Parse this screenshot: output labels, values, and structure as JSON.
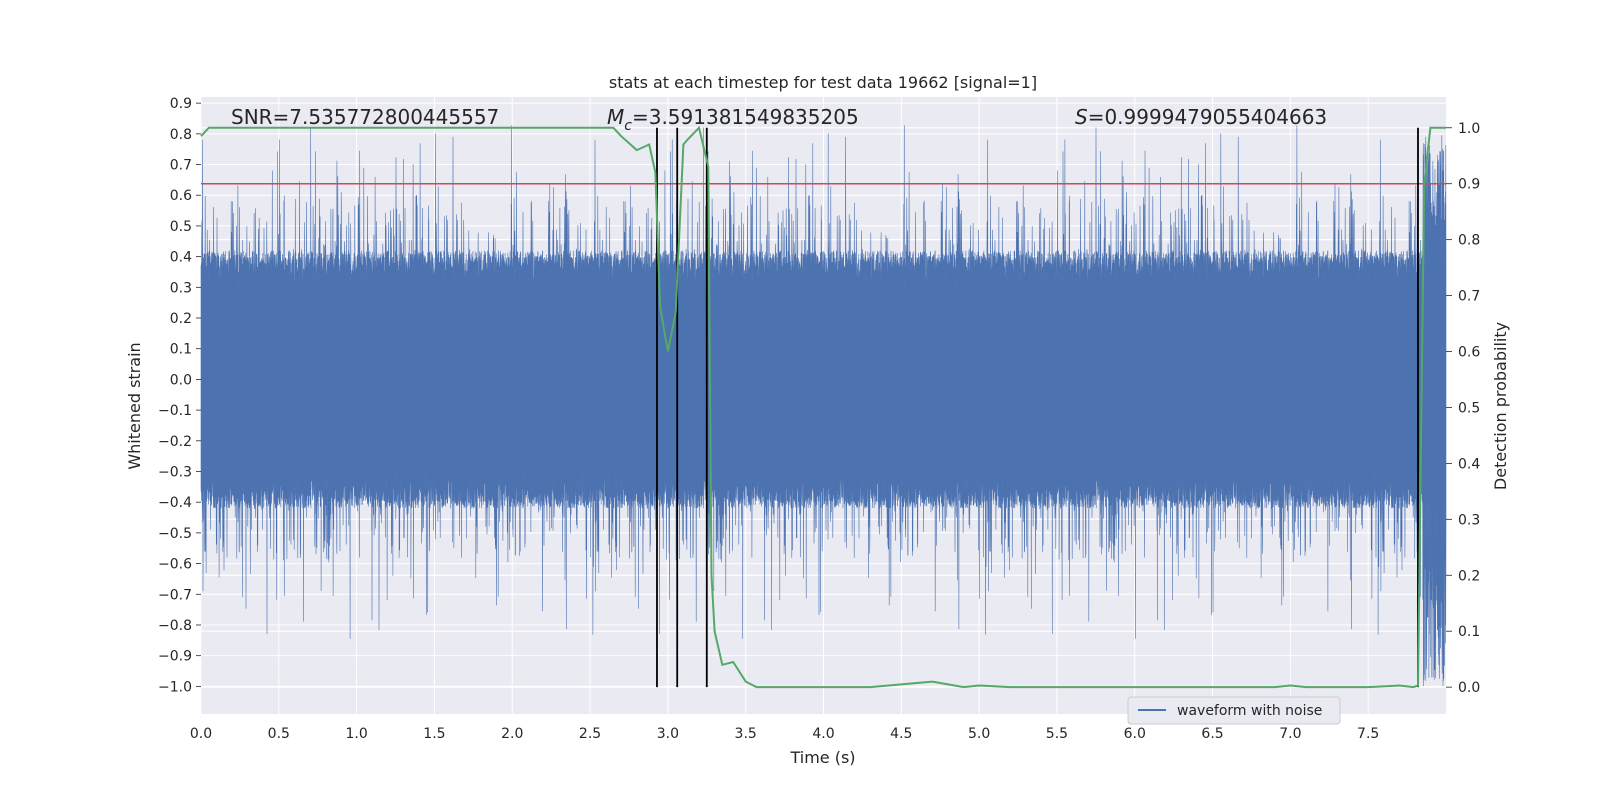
{
  "chart_data": {
    "type": "line",
    "title": "stats at each timestep for test data 19662 [signal=1]",
    "xlabel": "Time (s)",
    "ylabel": "Whitened strain",
    "y2label": "Detection probability",
    "xlim": [
      0.0,
      8.0
    ],
    "ylim": [
      -1.09,
      0.92
    ],
    "y2lim": [
      -0.048,
      1.055
    ],
    "x_ticks": [
      0.0,
      0.5,
      1.0,
      1.5,
      2.0,
      2.5,
      3.0,
      3.5,
      4.0,
      4.5,
      5.0,
      5.5,
      6.0,
      6.5,
      7.0,
      7.5
    ],
    "x_tick_labels": [
      "0.0",
      "0.5",
      "1.0",
      "1.5",
      "2.0",
      "2.5",
      "3.0",
      "3.5",
      "4.0",
      "4.5",
      "5.0",
      "5.5",
      "6.0",
      "6.5",
      "7.0",
      "7.5"
    ],
    "y_ticks": [
      0.9,
      0.8,
      0.7,
      0.6,
      0.5,
      0.4,
      0.3,
      0.2,
      0.1,
      0.0,
      -0.1,
      -0.2,
      -0.3,
      -0.4,
      -0.5,
      -0.6,
      -0.7,
      -0.8,
      -0.9,
      -1.0
    ],
    "y_tick_labels": [
      "0.9",
      "0.8",
      "0.7",
      "0.6",
      "0.5",
      "0.4",
      "0.3",
      "0.2",
      "0.1",
      "0.0",
      "−0.1",
      "−0.2",
      "−0.3",
      "−0.4",
      "−0.5",
      "−0.6",
      "−0.7",
      "−0.8",
      "−0.9",
      "−1.0"
    ],
    "y2_ticks": [
      1.0,
      0.9,
      0.8,
      0.7,
      0.6,
      0.5,
      0.4,
      0.3,
      0.2,
      0.1,
      0.0
    ],
    "y2_tick_labels": [
      "1.0",
      "0.9",
      "0.8",
      "0.7",
      "0.6",
      "0.5",
      "0.4",
      "0.3",
      "0.2",
      "0.1",
      "0.0"
    ],
    "annotations": {
      "snr": "SNR=7.535772800445557",
      "mc_symbol": "M",
      "mc_subscript": "c",
      "mc_value": "=3.591381549835205",
      "s_symbol": "S",
      "s_value": "=0.9999479055404663"
    },
    "threshold": {
      "value": 0.9,
      "axis": "y2",
      "color": "#c44e52"
    },
    "vertical_markers": [
      2.93,
      3.06,
      3.25,
      7.82
    ],
    "series": [
      {
        "name": "waveform with noise",
        "axis": "y",
        "color": "#4c72b0",
        "style": "noise band",
        "body_range": [
          -0.3,
          0.3
        ],
        "typical_peak_range": [
          -0.55,
          0.55
        ],
        "max": 0.83,
        "min": -1.0
      },
      {
        "name": "detection probability",
        "axis": "y2",
        "color": "#55a868",
        "x": [
          0.0,
          0.05,
          0.1,
          0.5,
          1.0,
          1.5,
          2.0,
          2.5,
          2.65,
          2.7,
          2.8,
          2.88,
          2.92,
          2.95,
          3.0,
          3.05,
          3.1,
          3.13,
          3.2,
          3.26,
          3.28,
          3.3,
          3.35,
          3.42,
          3.5,
          3.57,
          3.7,
          4.0,
          4.3,
          4.5,
          4.7,
          4.9,
          5.0,
          5.2,
          5.5,
          6.0,
          6.5,
          6.9,
          7.0,
          7.1,
          7.5,
          7.7,
          7.79,
          7.82,
          7.86,
          7.9,
          7.95,
          8.0
        ],
        "values": [
          0.985,
          1.0,
          1.0,
          1.0,
          1.0,
          1.0,
          1.0,
          1.0,
          1.0,
          0.985,
          0.96,
          0.97,
          0.92,
          0.68,
          0.6,
          0.67,
          0.97,
          0.98,
          1.0,
          0.93,
          0.2,
          0.1,
          0.04,
          0.045,
          0.01,
          0.0,
          0.0,
          0.0,
          0.0,
          0.005,
          0.01,
          0.0,
          0.003,
          0.0,
          0.0,
          0.0,
          0.0,
          0.0,
          0.003,
          0.0,
          0.0,
          0.003,
          0.0,
          0.003,
          0.9,
          1.0,
          1.0,
          1.0
        ]
      }
    ],
    "legend": {
      "label": "waveform with noise",
      "placement": "lower-right"
    },
    "grid": true
  }
}
